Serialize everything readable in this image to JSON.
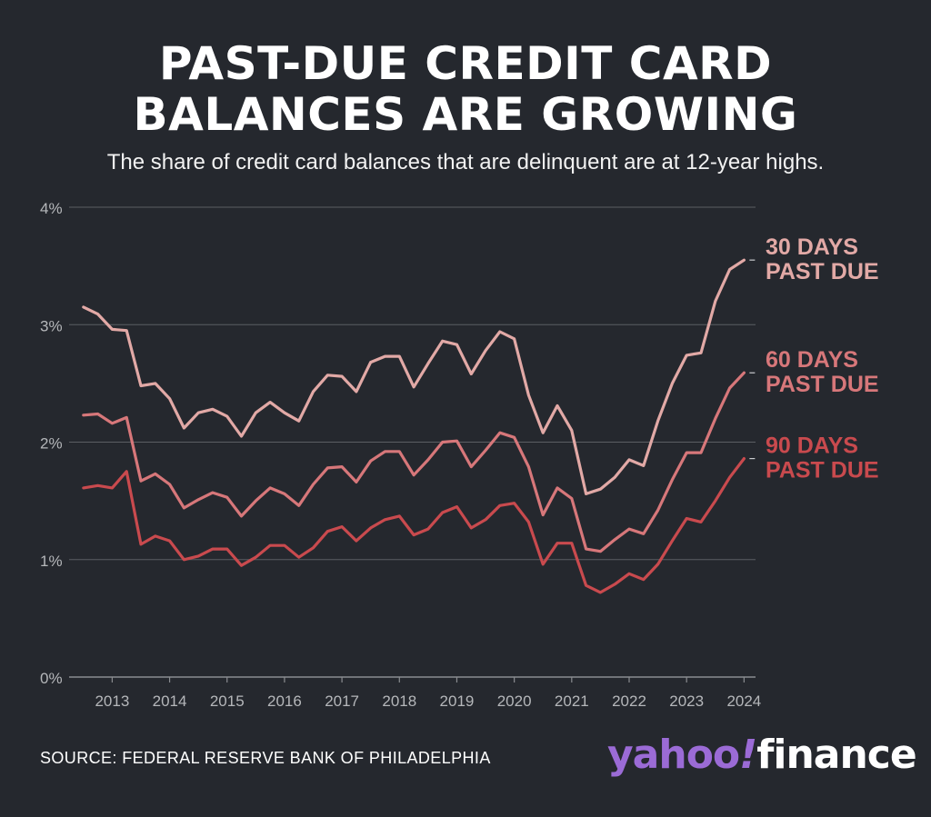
{
  "title_line1": "PAST-DUE CREDIT CARD",
  "title_line2": "BALANCES ARE GROWING",
  "subtitle": "The share of credit card balances that are delinquent are at 12-year highs.",
  "source": "SOURCE: FEDERAL RESERVE BANK OF PHILADELPHIA",
  "logo": {
    "part1": "yahoo",
    "part2": "!",
    "part3": "finance"
  },
  "colors": {
    "background": "#25282e",
    "grid": "#5b5e63",
    "axis_text": "#b5b7ba",
    "d30": "#e2a9a6",
    "d60": "#d7777a",
    "d90": "#c94a4e"
  },
  "chart_data": {
    "type": "line",
    "title": "PAST-DUE CREDIT CARD BALANCES ARE GROWING",
    "x_start": 2012.5,
    "x_step": 0.25,
    "x_ticks": [
      "2013",
      "2014",
      "2015",
      "2016",
      "2017",
      "2018",
      "2019",
      "2020",
      "2021",
      "2022",
      "2023",
      "2024"
    ],
    "x_tick_values": [
      2013,
      2014,
      2015,
      2016,
      2017,
      2018,
      2019,
      2020,
      2021,
      2022,
      2023,
      2024
    ],
    "xlim": [
      2012.25,
      2024.2
    ],
    "ylim": [
      0,
      4
    ],
    "y_ticks": [
      "0%",
      "1%",
      "2%",
      "3%",
      "4%"
    ],
    "y_tick_values": [
      0,
      1,
      2,
      3,
      4
    ],
    "grid": true,
    "series": [
      {
        "name": "30 DAYS PAST DUE",
        "label_line1": "30 DAYS",
        "label_line2": "PAST DUE",
        "color_key": "d30",
        "values": [
          3.15,
          3.09,
          2.96,
          2.95,
          2.48,
          2.5,
          2.37,
          2.12,
          2.25,
          2.28,
          2.22,
          2.05,
          2.25,
          2.34,
          2.25,
          2.18,
          2.43,
          2.57,
          2.56,
          2.43,
          2.68,
          2.73,
          2.73,
          2.47,
          2.67,
          2.86,
          2.83,
          2.58,
          2.78,
          2.94,
          2.88,
          2.4,
          2.08,
          2.31,
          2.1,
          1.56,
          1.6,
          1.7,
          1.85,
          1.8,
          2.18,
          2.5,
          2.74,
          2.76,
          3.2,
          3.47,
          3.55
        ]
      },
      {
        "name": "60 DAYS PAST DUE",
        "label_line1": "60 DAYS",
        "label_line2": "PAST DUE",
        "color_key": "d60",
        "values": [
          2.23,
          2.24,
          2.16,
          2.21,
          1.67,
          1.73,
          1.64,
          1.44,
          1.51,
          1.57,
          1.53,
          1.37,
          1.5,
          1.61,
          1.56,
          1.46,
          1.64,
          1.78,
          1.79,
          1.66,
          1.84,
          1.92,
          1.92,
          1.72,
          1.85,
          2.0,
          2.01,
          1.79,
          1.93,
          2.08,
          2.04,
          1.79,
          1.38,
          1.61,
          1.52,
          1.09,
          1.07,
          1.17,
          1.26,
          1.22,
          1.42,
          1.68,
          1.91,
          1.91,
          2.2,
          2.46,
          2.59
        ]
      },
      {
        "name": "90 DAYS PAST DUE",
        "label_line1": "90 DAYS",
        "label_line2": "PAST DUE",
        "color_key": "d90",
        "values": [
          1.61,
          1.63,
          1.61,
          1.75,
          1.13,
          1.2,
          1.16,
          1.0,
          1.03,
          1.09,
          1.09,
          0.95,
          1.02,
          1.12,
          1.12,
          1.02,
          1.1,
          1.24,
          1.28,
          1.16,
          1.27,
          1.34,
          1.37,
          1.21,
          1.26,
          1.4,
          1.45,
          1.27,
          1.34,
          1.46,
          1.48,
          1.32,
          0.96,
          1.14,
          1.14,
          0.78,
          0.72,
          0.79,
          0.88,
          0.83,
          0.96,
          1.16,
          1.35,
          1.32,
          1.5,
          1.7,
          1.86
        ]
      }
    ]
  }
}
